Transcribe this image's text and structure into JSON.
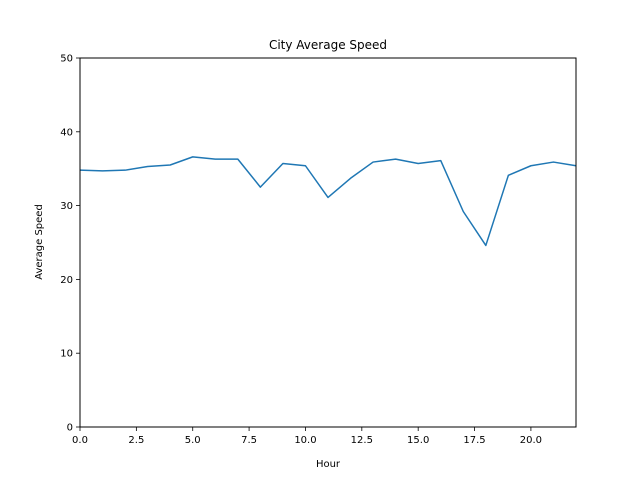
{
  "chart_data": {
    "type": "line",
    "title": "City Average Speed",
    "xlabel": "Hour",
    "ylabel": "Average Speed",
    "xlim": [
      0,
      22
    ],
    "ylim": [
      0,
      50
    ],
    "xticks": [
      0,
      2.5,
      5,
      7.5,
      10,
      12.5,
      15,
      17.5,
      20
    ],
    "xtick_labels": [
      "0.0",
      "2.5",
      "5.0",
      "7.5",
      "10.0",
      "12.5",
      "15.0",
      "17.5",
      "20.0"
    ],
    "yticks": [
      0,
      10,
      20,
      30,
      40,
      50
    ],
    "ytick_labels": [
      "0",
      "10",
      "20",
      "30",
      "40",
      "50"
    ],
    "grid": false,
    "series": [
      {
        "color": "#1f77b4",
        "x": [
          0,
          1,
          2,
          3,
          4,
          5,
          6,
          7,
          8,
          9,
          10,
          11,
          12,
          13,
          14,
          15,
          16,
          17,
          18,
          19,
          20,
          21,
          22
        ],
        "y": [
          34.8,
          34.7,
          34.8,
          35.3,
          35.5,
          36.6,
          36.3,
          36.3,
          32.5,
          35.7,
          35.4,
          31.1,
          33.7,
          35.9,
          36.3,
          35.7,
          36.1,
          29.2,
          24.6,
          34.1,
          35.4,
          35.9,
          35.4
        ]
      }
    ]
  }
}
